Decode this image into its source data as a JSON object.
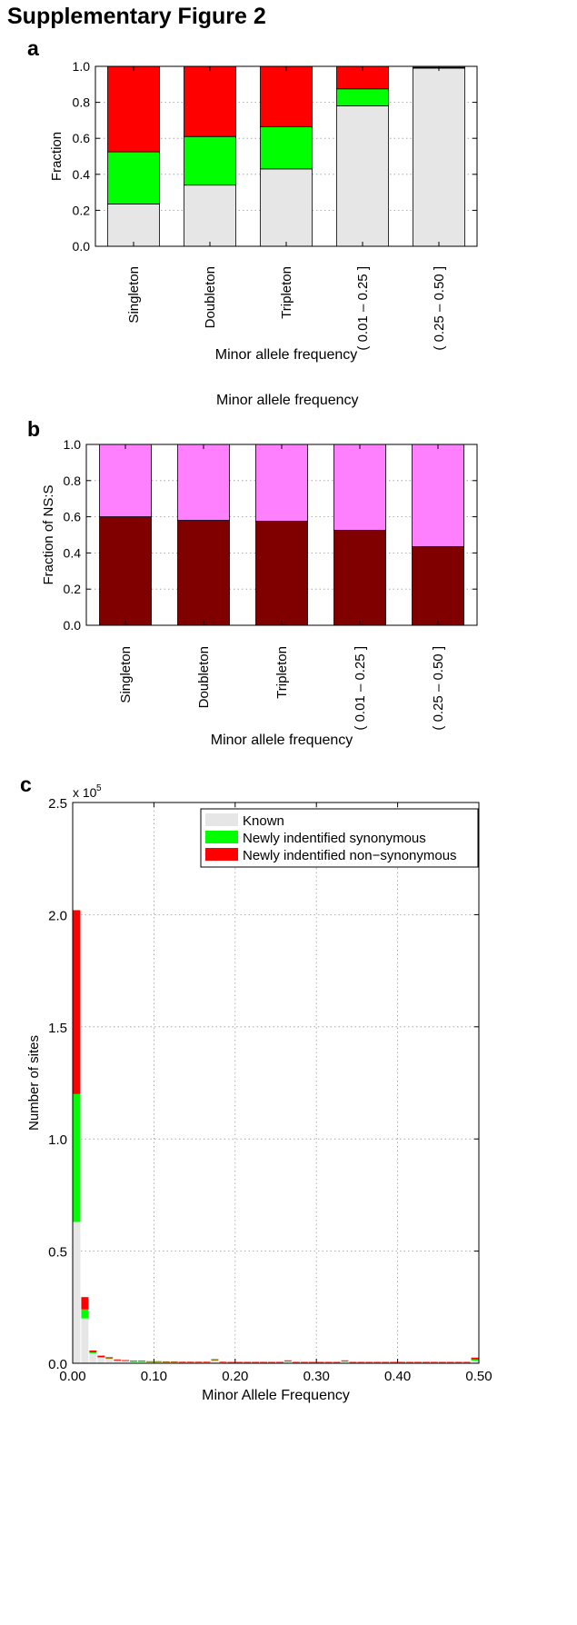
{
  "page_title": "Supplementary Figure 2",
  "stray_label": "Minor allele frequency",
  "colors": {
    "known": "#e6e6e6",
    "syn": "#00ff00",
    "nonsyn": "#ff0000",
    "ns_light": "#ff80ff",
    "ns_dark": "#800000"
  },
  "chart_data": [
    {
      "panel": "a",
      "type": "bar",
      "stacked": true,
      "categories": [
        "Singleton",
        "Doubleton",
        "Tripleton",
        "( 0.01 – 0.25 ]",
        "( 0.25 – 0.50 ]"
      ],
      "series": [
        {
          "key": "known",
          "values": [
            0.235,
            0.34,
            0.43,
            0.78,
            0.99
          ]
        },
        {
          "key": "syn",
          "values": [
            0.29,
            0.27,
            0.235,
            0.095,
            0.003
          ]
        },
        {
          "key": "nonsyn",
          "values": [
            0.475,
            0.39,
            0.335,
            0.125,
            0.007
          ]
        }
      ],
      "ylim": [
        0,
        1
      ],
      "yticks": [
        "0.0",
        "0.2",
        "0.4",
        "0.6",
        "0.8",
        "1.0"
      ],
      "ylabel": "Fraction",
      "xlabel": "Minor allele frequency",
      "grid": "y dotted"
    },
    {
      "panel": "b",
      "type": "bar",
      "stacked": true,
      "categories": [
        "Singleton",
        "Doubleton",
        "Tripleton",
        "( 0.01 – 0.25 ]",
        "( 0.25 – 0.50 ]"
      ],
      "series": [
        {
          "key": "ns_dark",
          "values": [
            0.6,
            0.58,
            0.575,
            0.525,
            0.435
          ]
        },
        {
          "key": "ns_light",
          "values": [
            0.4,
            0.42,
            0.425,
            0.475,
            0.565
          ]
        }
      ],
      "ylim": [
        0,
        1
      ],
      "yticks": [
        "0.0",
        "0.2",
        "0.4",
        "0.6",
        "0.8",
        "1.0"
      ],
      "ylabel": "Fraction of NS:S",
      "xlabel": "Minor allele frequency",
      "grid": "y dotted"
    },
    {
      "panel": "c",
      "type": "bar",
      "stacked": true,
      "x": [
        0.005,
        0.015,
        0.025,
        0.035,
        0.045,
        0.055,
        0.065,
        0.075,
        0.085,
        0.095,
        0.105,
        0.115,
        0.125,
        0.135,
        0.145,
        0.155,
        0.165,
        0.175,
        0.185,
        0.195,
        0.205,
        0.215,
        0.225,
        0.235,
        0.245,
        0.255,
        0.265,
        0.275,
        0.285,
        0.295,
        0.305,
        0.315,
        0.325,
        0.335,
        0.345,
        0.355,
        0.365,
        0.375,
        0.385,
        0.395,
        0.405,
        0.415,
        0.425,
        0.435,
        0.445,
        0.455,
        0.465,
        0.475,
        0.485,
        0.495
      ],
      "bin_width": 0.01,
      "series": [
        {
          "name": "Known",
          "key": "known",
          "values": [
            0.63,
            0.2,
            0.045,
            0.025,
            0.02,
            0.012,
            0.01,
            0.008,
            0.008,
            0.006,
            0.006,
            0.005,
            0.005,
            0.004,
            0.004,
            0.004,
            0.004,
            0.012,
            0.004,
            0.003,
            0.003,
            0.003,
            0.003,
            0.003,
            0.003,
            0.003,
            0.008,
            0.003,
            0.003,
            0.003,
            0.003,
            0.003,
            0.003,
            0.008,
            0.003,
            0.003,
            0.003,
            0.003,
            0.003,
            0.003,
            0.003,
            0.003,
            0.003,
            0.003,
            0.003,
            0.003,
            0.003,
            0.003,
            0.003,
            0.012
          ]
        },
        {
          "name": "Newly indentified synonymous",
          "key": "syn",
          "values": [
            0.57,
            0.04,
            0.004,
            0.003,
            0.002,
            0.001,
            0.001,
            0.001,
            0.001,
            0.001,
            0.001,
            0.001,
            0.001,
            0.001,
            0.001,
            0.001,
            0.001,
            0.002,
            0.001,
            0.001,
            0.001,
            0.001,
            0.001,
            0.001,
            0.001,
            0.001,
            0.002,
            0.001,
            0.001,
            0.001,
            0.001,
            0.001,
            0.001,
            0.002,
            0.001,
            0.001,
            0.001,
            0.001,
            0.001,
            0.001,
            0.001,
            0.001,
            0.001,
            0.001,
            0.001,
            0.001,
            0.001,
            0.001,
            0.001,
            0.005
          ]
        },
        {
          "name": "Newly indentified non−synonymous",
          "key": "nonsyn",
          "values": [
            0.82,
            0.055,
            0.008,
            0.006,
            0.005,
            0.004,
            0.003,
            0.003,
            0.003,
            0.002,
            0.002,
            0.002,
            0.002,
            0.002,
            0.002,
            0.002,
            0.002,
            0.004,
            0.002,
            0.002,
            0.002,
            0.002,
            0.002,
            0.002,
            0.002,
            0.002,
            0.003,
            0.002,
            0.002,
            0.002,
            0.002,
            0.002,
            0.002,
            0.003,
            0.002,
            0.002,
            0.002,
            0.002,
            0.002,
            0.002,
            0.002,
            0.002,
            0.002,
            0.002,
            0.002,
            0.002,
            0.002,
            0.002,
            0.002,
            0.008
          ]
        }
      ],
      "xlim": [
        0,
        0.5
      ],
      "ylim": [
        0,
        2.5
      ],
      "xticks": [
        "0.00",
        "0.10",
        "0.20",
        "0.30",
        "0.40",
        "0.50"
      ],
      "yticks": [
        "0.0",
        "0.5",
        "1.0",
        "1.5",
        "2.0",
        "2.5"
      ],
      "y_multiplier": "x 10",
      "y_exponent": "5",
      "ylabel": "Number of sites",
      "xlabel": "Minor Allele Frequency",
      "legend": "top-right",
      "grid": "xy dotted"
    }
  ]
}
